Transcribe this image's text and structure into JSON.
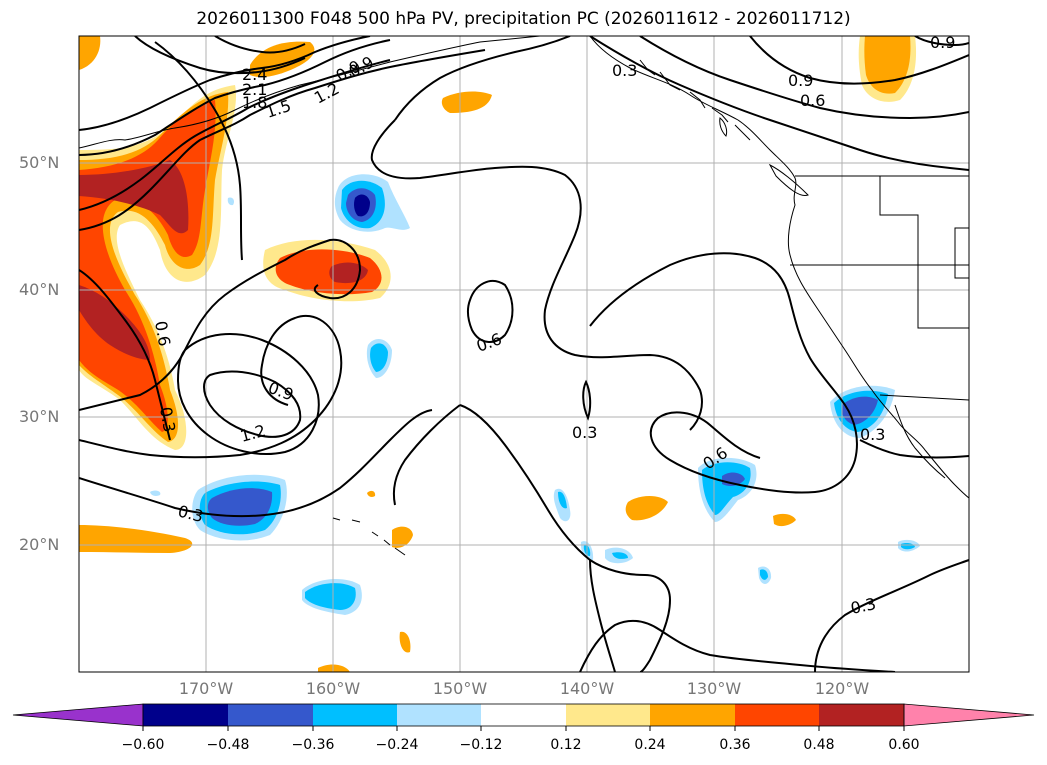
{
  "title": "2026011300 F048 500 hPa PV, precipitation PC (2026011612 - 2026011712)",
  "latitude_labels": [
    "50°N",
    "40°N",
    "30°N",
    "20°N"
  ],
  "longitude_labels": [
    "170°W",
    "160°W",
    "150°W",
    "140°W",
    "130°W",
    "120°W"
  ],
  "contour_labels": [
    "0.3",
    "0.3",
    "0.3",
    "0.3",
    "0.3",
    "0.6",
    "0.6",
    "0.6",
    "0.6",
    "0.9",
    "0.9",
    "0.9",
    "0.9",
    "1.2",
    "1.2",
    "1.5",
    "1.8",
    "2.1",
    "2.4",
    "0.9",
    "0.3"
  ],
  "colorbar": {
    "ticks": [
      "−0.60",
      "−0.48",
      "−0.36",
      "−0.24",
      "−0.12",
      "0.12",
      "0.24",
      "0.36",
      "0.48",
      "0.60"
    ],
    "colors": [
      "#9932cc",
      "#00008b",
      "#3558cc",
      "#00bfff",
      "#b0e2ff",
      "#ffffff",
      "#ffe88c",
      "#ffa500",
      "#ff4500",
      "#b22222",
      "#ff82ab"
    ]
  },
  "colors": {
    "land_outline": "#000000",
    "grid": "#b0b0b0",
    "axis_label": "#777777"
  }
}
